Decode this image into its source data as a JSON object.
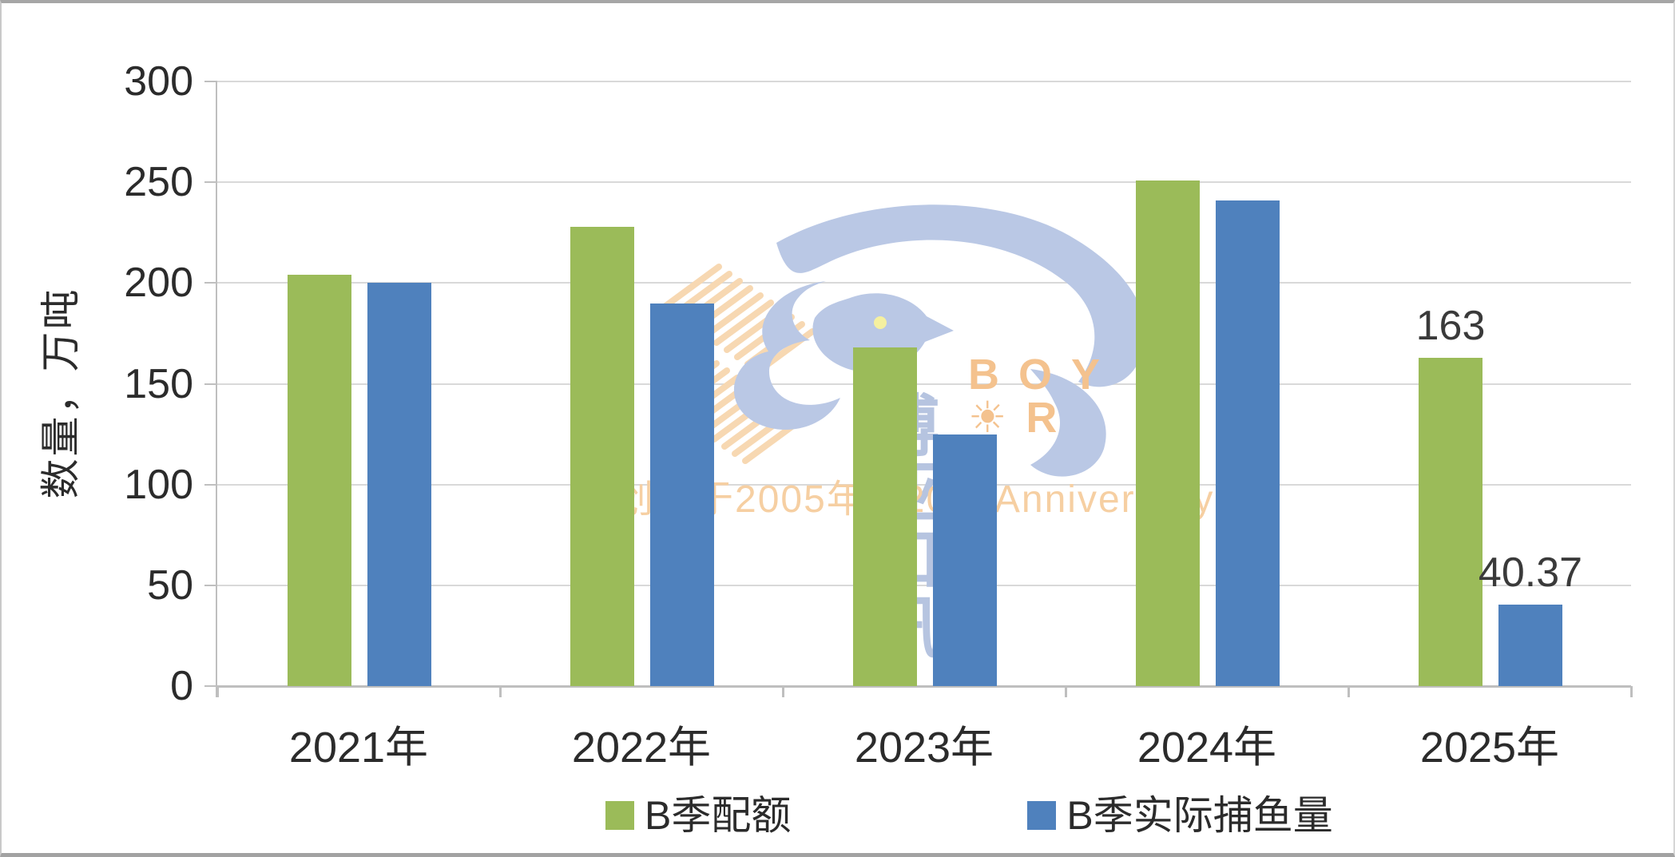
{
  "chart_data": {
    "type": "bar",
    "title": "",
    "ylabel": "数量，万吨",
    "categories": [
      "2021年",
      "2022年",
      "2023年",
      "2024年",
      "2025年"
    ],
    "series": [
      {
        "name": "B季配额",
        "color": "#9bbb59",
        "values": [
          204,
          228,
          168,
          251,
          163
        ]
      },
      {
        "name": "B季实际捕鱼量",
        "color": "#4f81bd",
        "values": [
          200,
          190,
          125,
          241,
          40.37
        ]
      }
    ],
    "data_labels": [
      {
        "category": "2025年",
        "series": "B季配额",
        "text": "163"
      },
      {
        "category": "2025年",
        "series": "B季实际捕鱼量",
        "text": "40.37"
      }
    ],
    "y_ticks": [
      0,
      50,
      100,
      150,
      200,
      250,
      300
    ],
    "ylim": [
      0,
      300
    ],
    "grid": true,
    "legend_position": "bottom-center",
    "colors": {
      "gridline": "#d9d9d9",
      "axis": "#bfbfbf",
      "tick_text": "#2b2b2b",
      "data_label_text": "#3a3a3a"
    }
  },
  "watermark": {
    "brand_en": "BOY☀R",
    "brand_cn": "博亚和讯",
    "anniversary": "创立于2005年   20th Anniversary",
    "colors": {
      "bird": "#bac8e5",
      "bird_eye": "#f5f0a0",
      "hatch": "#f7d8b2",
      "brand_en_text": "#f4c28e",
      "brand_cn_text": "#b6c4e0",
      "anniversary_text": "#f6cfa2"
    }
  }
}
